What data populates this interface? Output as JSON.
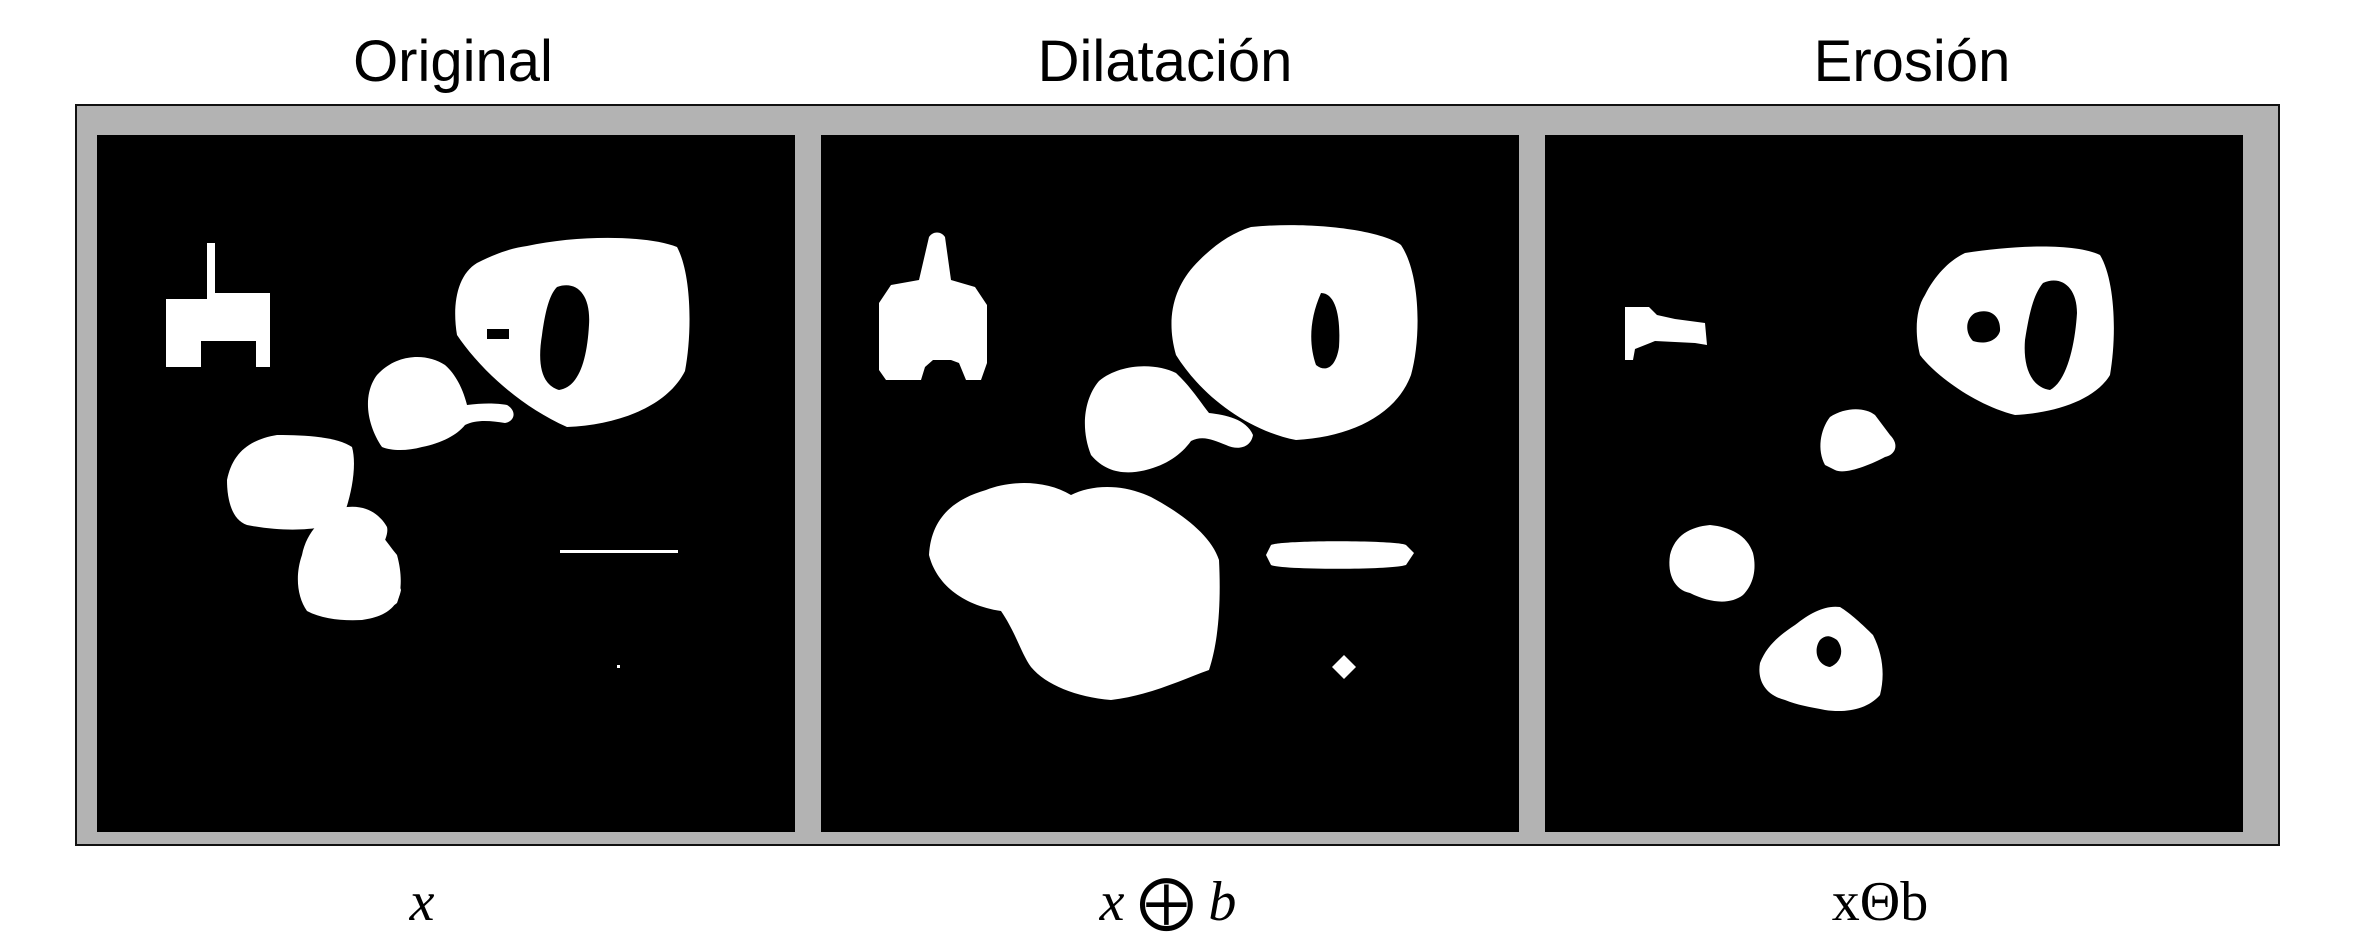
{
  "titles": {
    "original": "Original",
    "dilation": "Dilatación",
    "erosion": "Erosión"
  },
  "captions": {
    "original": "x",
    "dilation": {
      "left": "x",
      "operator": "⨁",
      "right": "b"
    },
    "erosion": "xΘb"
  },
  "colors": {
    "frame": "#b3b3b3",
    "panel_background": "#000000",
    "shapes": "#ffffff"
  }
}
